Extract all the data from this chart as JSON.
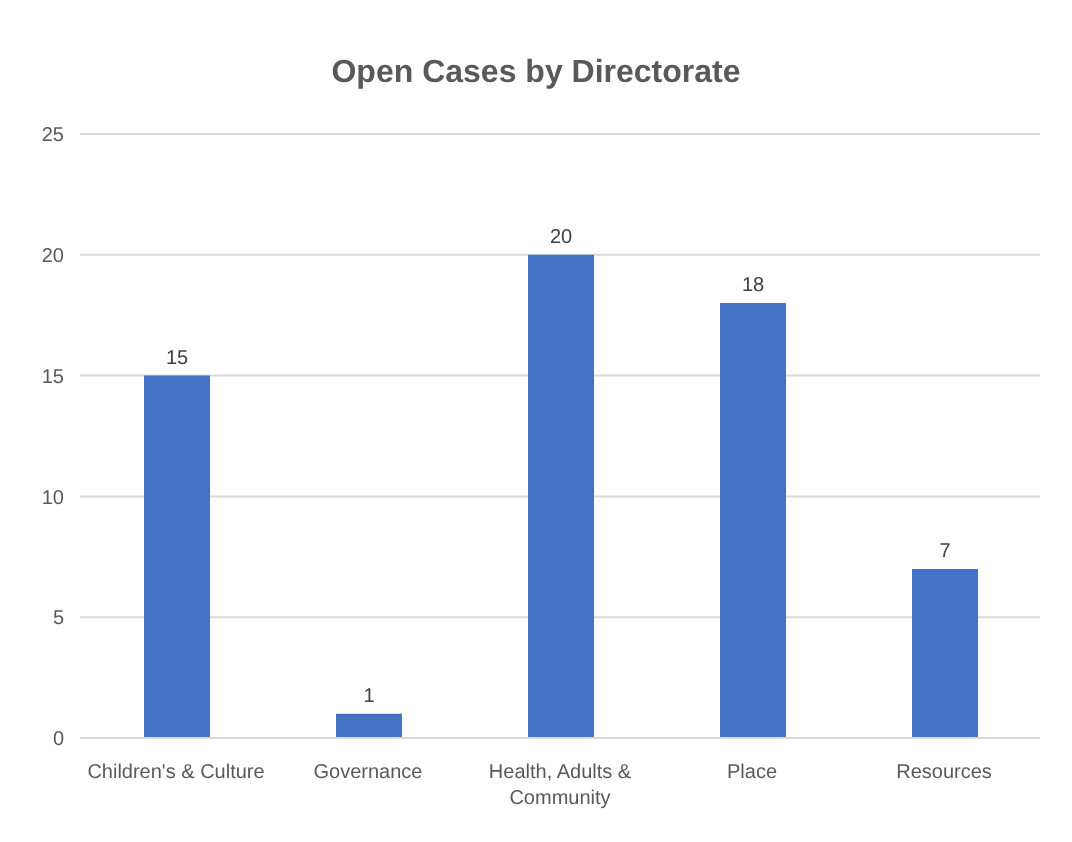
{
  "chart_data": {
    "type": "bar",
    "title": "Open Cases by Directorate",
    "categories": [
      "Children's & Culture",
      "Governance",
      "Health, Adults & Community",
      "Place",
      "Resources"
    ],
    "values": [
      15,
      1,
      20,
      18,
      7
    ],
    "color": "#4472c4",
    "ylim": [
      0,
      25
    ],
    "yticks": [
      0,
      5,
      10,
      15,
      20,
      25
    ],
    "grid": "y",
    "data_labels": true,
    "legend": false
  }
}
